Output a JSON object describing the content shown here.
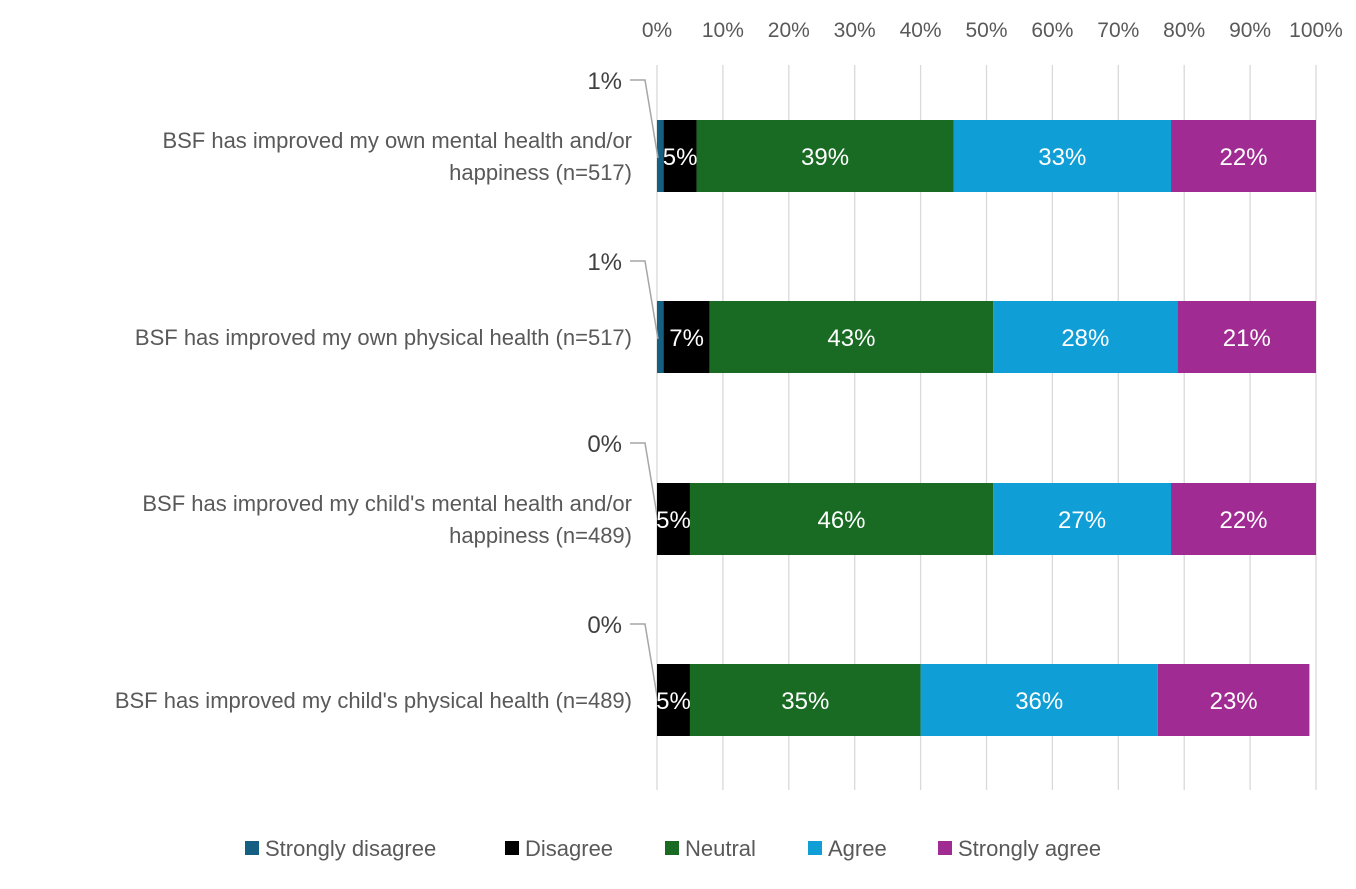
{
  "chart_data": {
    "type": "bar",
    "orientation": "horizontal",
    "stacked": true,
    "categories": [
      [
        "BSF has improved my own mental health and/or",
        "happiness (n=517)"
      ],
      [
        "BSF has improved my own physical health (n=517)"
      ],
      [
        "BSF has improved my child's mental health and/or",
        "happiness (n=489)"
      ],
      [
        "BSF has improved my child's physical health (n=489)"
      ]
    ],
    "series": [
      {
        "name": "Strongly disagree",
        "color": "#156082",
        "values": [
          1,
          1,
          0,
          0
        ],
        "labels": [
          "1%",
          "1%",
          "0%",
          "0%"
        ]
      },
      {
        "name": "Disagree",
        "color": "#000000",
        "values": [
          5,
          7,
          5,
          5
        ],
        "labels": [
          "5%",
          "7%",
          "5%",
          "5%"
        ]
      },
      {
        "name": "Neutral",
        "color": "#196B24",
        "values": [
          39,
          43,
          46,
          35
        ],
        "labels": [
          "39%",
          "43%",
          "46%",
          "35%"
        ]
      },
      {
        "name": "Agree",
        "color": "#0F9ED5",
        "values": [
          33,
          28,
          27,
          36
        ],
        "labels": [
          "33%",
          "28%",
          "27%",
          "36%"
        ]
      },
      {
        "name": "Strongly agree",
        "color": "#A02B93",
        "values": [
          22,
          21,
          22,
          23
        ],
        "labels": [
          "22%",
          "21%",
          "22%",
          "23%"
        ]
      }
    ],
    "xlim": [
      0,
      100
    ],
    "xticks": [
      "0%",
      "10%",
      "20%",
      "30%",
      "40%",
      "50%",
      "60%",
      "70%",
      "80%",
      "90%",
      "100%"
    ],
    "x_axis_position": "top",
    "grid": true,
    "legend_position": "bottom"
  }
}
